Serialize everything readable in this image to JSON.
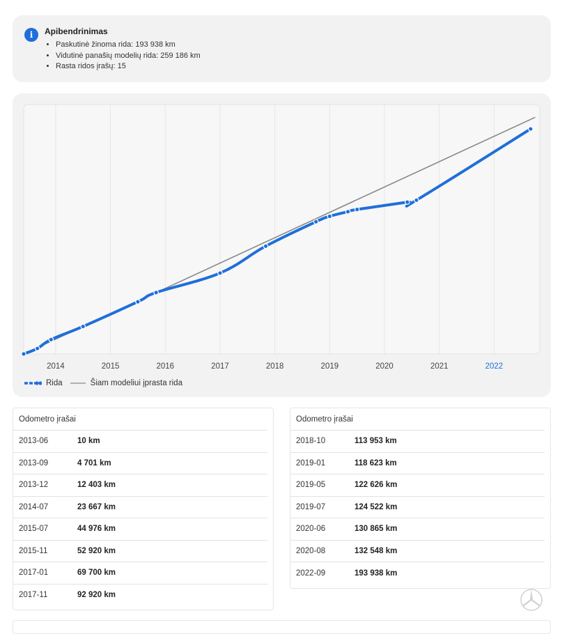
{
  "summary": {
    "title": "Apibendrinimas",
    "items": [
      "Paskutinė žinoma rida: 193 938 km",
      "Vidutinė panašių modelių rida: 259 186 km",
      "Rasta ridos įrašų: 15"
    ]
  },
  "chart_data": {
    "type": "line",
    "x_ticks": [
      "2014",
      "2015",
      "2016",
      "2017",
      "2018",
      "2019",
      "2020",
      "2021",
      "2022"
    ],
    "highlighted_tick": "2022",
    "series": [
      {
        "name": "Rida",
        "color": "#1e6fd9",
        "style": "solid-with-dots",
        "points": [
          {
            "x": "2013-06",
            "y": 10
          },
          {
            "x": "2013-09",
            "y": 4701
          },
          {
            "x": "2013-12",
            "y": 12403
          },
          {
            "x": "2014-07",
            "y": 23667
          },
          {
            "x": "2015-07",
            "y": 44976
          },
          {
            "x": "2015-11",
            "y": 52920
          },
          {
            "x": "2017-01",
            "y": 69700
          },
          {
            "x": "2017-11",
            "y": 92920
          },
          {
            "x": "2018-10",
            "y": 113953
          },
          {
            "x": "2019-01",
            "y": 118623
          },
          {
            "x": "2019-05",
            "y": 122626
          },
          {
            "x": "2019-07",
            "y": 124522
          },
          {
            "x": "2020-06",
            "y": 130865
          },
          {
            "x": "2020-08",
            "y": 132548
          },
          {
            "x": "2022-09",
            "y": 193938
          }
        ]
      },
      {
        "name": "Šiam modeliui įprasta rida",
        "color": "#888888",
        "style": "thin-line",
        "points": [
          {
            "x": "2013-06",
            "y": 0
          },
          {
            "x": "2022-10",
            "y": 204000
          }
        ]
      }
    ],
    "ylim": [
      0,
      215000
    ],
    "xlim": [
      "2013-06",
      "2022-11"
    ],
    "grid": "vertical",
    "legend_position": "bottom-left"
  },
  "legend": {
    "series_label": "Rida",
    "typical_label": "Šiam modeliui įprasta rida"
  },
  "tables": {
    "left": {
      "title": "Odometro įrašai",
      "rows": [
        {
          "date": "2013-06",
          "km": "10 km"
        },
        {
          "date": "2013-09",
          "km": "4 701 km"
        },
        {
          "date": "2013-12",
          "km": "12 403 km"
        },
        {
          "date": "2014-07",
          "km": "23 667 km"
        },
        {
          "date": "2015-07",
          "km": "44 976 km"
        },
        {
          "date": "2015-11",
          "km": "52 920 km"
        },
        {
          "date": "2017-01",
          "km": "69 700 km"
        },
        {
          "date": "2017-11",
          "km": "92 920 km"
        }
      ]
    },
    "right": {
      "title": "Odometro įrašai",
      "rows": [
        {
          "date": "2018-10",
          "km": "113 953 km"
        },
        {
          "date": "2019-01",
          "km": "118 623 km"
        },
        {
          "date": "2019-05",
          "km": "122 626 km"
        },
        {
          "date": "2019-07",
          "km": "124 522 km"
        },
        {
          "date": "2020-06",
          "km": "130 865 km"
        },
        {
          "date": "2020-08",
          "km": "132 548 km"
        },
        {
          "date": "2022-09",
          "km": "193 938 km"
        }
      ]
    }
  },
  "icons": {
    "info": "info-icon",
    "watermark": "mercedes-star-icon"
  },
  "colors": {
    "accent": "#1e6fd9",
    "typical": "#888888",
    "card_bg": "#f2f2f2"
  }
}
